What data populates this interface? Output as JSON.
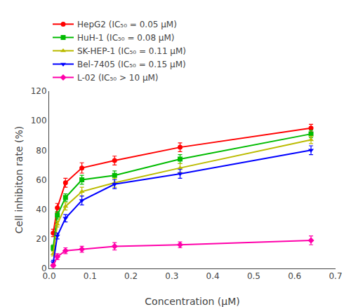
{
  "chart_data": {
    "type": "line",
    "x": [
      0.01,
      0.02,
      0.04,
      0.08,
      0.16,
      0.32,
      0.64
    ],
    "series": [
      {
        "name": "HepG2 (IC₅₀ = 0.05 μM)",
        "color": "#ff0000",
        "marker": "circle",
        "values": [
          24,
          41,
          58,
          68,
          73,
          82,
          95
        ],
        "errors": [
          2.5,
          3,
          3,
          3.5,
          3,
          3,
          2.5
        ]
      },
      {
        "name": "HuH-1 (IC₅₀ = 0.08 μM)",
        "color": "#00bb00",
        "marker": "square",
        "values": [
          14,
          36,
          48,
          60,
          63,
          74,
          91
        ],
        "errors": [
          2,
          2.5,
          2.5,
          3,
          3,
          3,
          2.5
        ]
      },
      {
        "name": "SK-HEP-1 (IC₅₀ = 0.11 μM)",
        "color": "#bbbb00",
        "marker": "triangle-up",
        "values": [
          10,
          30,
          42,
          52,
          58,
          68,
          87
        ],
        "errors": [
          1.5,
          2,
          2.5,
          3,
          3,
          3,
          2.5
        ]
      },
      {
        "name": "Bel-7405 (IC₅₀ = 0.15 μM)",
        "color": "#0000ff",
        "marker": "triangle-down",
        "values": [
          4,
          22,
          34,
          46,
          57,
          64,
          80
        ],
        "errors": [
          1.5,
          2,
          2.5,
          3,
          3,
          3,
          3
        ]
      },
      {
        "name": "L-02 (IC₅₀ > 10 μM)",
        "color": "#ff00aa",
        "marker": "diamond",
        "values": [
          2,
          8,
          12,
          13,
          15,
          16,
          19
        ],
        "errors": [
          1,
          2,
          2,
          2,
          2.5,
          2,
          3
        ]
      }
    ],
    "xlabel": "Concentration (μM)",
    "ylabel": "Cell inhibiton rate (%)",
    "xlim": [
      0,
      0.7
    ],
    "ylim": [
      0,
      120
    ],
    "xticks": [
      {
        "value": 0,
        "label": "0.0"
      },
      0.1,
      0.2,
      0.3,
      0.4,
      0.5,
      0.6,
      0.7
    ],
    "yticks": [
      0,
      20,
      40,
      60,
      80,
      100,
      120
    ],
    "grid": false,
    "legend": "above"
  }
}
